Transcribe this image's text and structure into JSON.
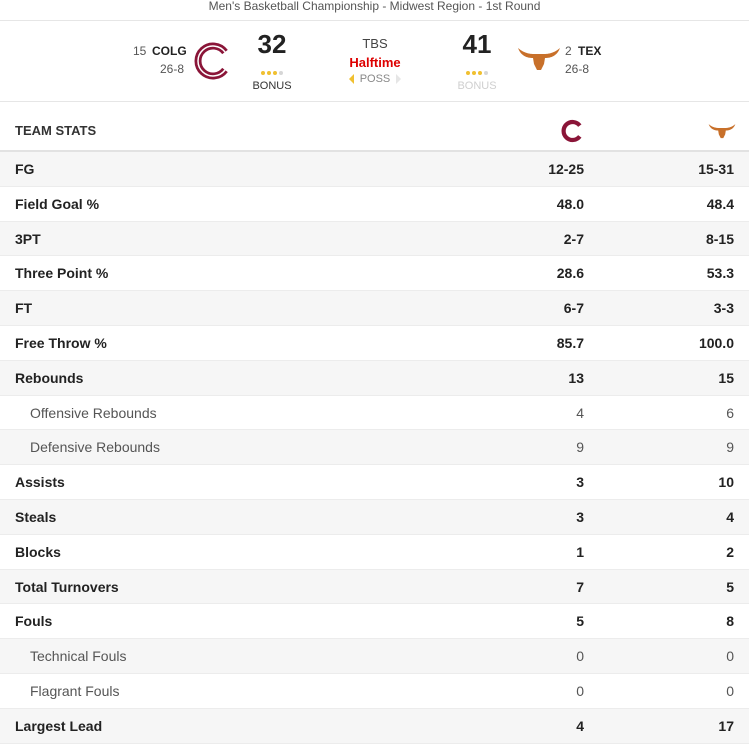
{
  "caption": "Men's Basketball Championship - Midwest Region - 1st Round",
  "colors": {
    "home_primary": "#8a1538",
    "away_primary": "#c8702a",
    "live": "#dd0000",
    "bonus_dot": "#f0c030"
  },
  "scoreboard": {
    "team_a": {
      "seed": "15",
      "abbr": "COLG",
      "record": "26-8",
      "score": "32",
      "bonus_label": "BONUS",
      "logo_icon": "colgate-c-logo-icon",
      "bonus_dots": [
        true,
        true,
        true,
        false
      ]
    },
    "team_b": {
      "seed": "2",
      "abbr": "TEX",
      "record": "26-8",
      "score": "41",
      "bonus_label": "BONUS",
      "logo_icon": "longhorn-logo-icon",
      "bonus_dots": [
        true,
        true,
        true,
        false
      ]
    },
    "network": "TBS",
    "period": "Halftime",
    "possession_label": "POSS"
  },
  "team_stats": {
    "title": "TEAM STATS",
    "rows": [
      {
        "label": "FG",
        "a": "12-25",
        "b": "15-31",
        "sub": false
      },
      {
        "label": "Field Goal %",
        "a": "48.0",
        "b": "48.4",
        "sub": false
      },
      {
        "label": "3PT",
        "a": "2-7",
        "b": "8-15",
        "sub": false
      },
      {
        "label": "Three Point %",
        "a": "28.6",
        "b": "53.3",
        "sub": false
      },
      {
        "label": "FT",
        "a": "6-7",
        "b": "3-3",
        "sub": false
      },
      {
        "label": "Free Throw %",
        "a": "85.7",
        "b": "100.0",
        "sub": false
      },
      {
        "label": "Rebounds",
        "a": "13",
        "b": "15",
        "sub": false
      },
      {
        "label": "Offensive Rebounds",
        "a": "4",
        "b": "6",
        "sub": true
      },
      {
        "label": "Defensive Rebounds",
        "a": "9",
        "b": "9",
        "sub": true
      },
      {
        "label": "Assists",
        "a": "3",
        "b": "10",
        "sub": false
      },
      {
        "label": "Steals",
        "a": "3",
        "b": "4",
        "sub": false
      },
      {
        "label": "Blocks",
        "a": "1",
        "b": "2",
        "sub": false
      },
      {
        "label": "Total Turnovers",
        "a": "7",
        "b": "5",
        "sub": false
      },
      {
        "label": "Fouls",
        "a": "5",
        "b": "8",
        "sub": false
      },
      {
        "label": "Technical Fouls",
        "a": "0",
        "b": "0",
        "sub": true
      },
      {
        "label": "Flagrant Fouls",
        "a": "0",
        "b": "0",
        "sub": true
      },
      {
        "label": "Largest Lead",
        "a": "4",
        "b": "17",
        "sub": false
      }
    ]
  }
}
